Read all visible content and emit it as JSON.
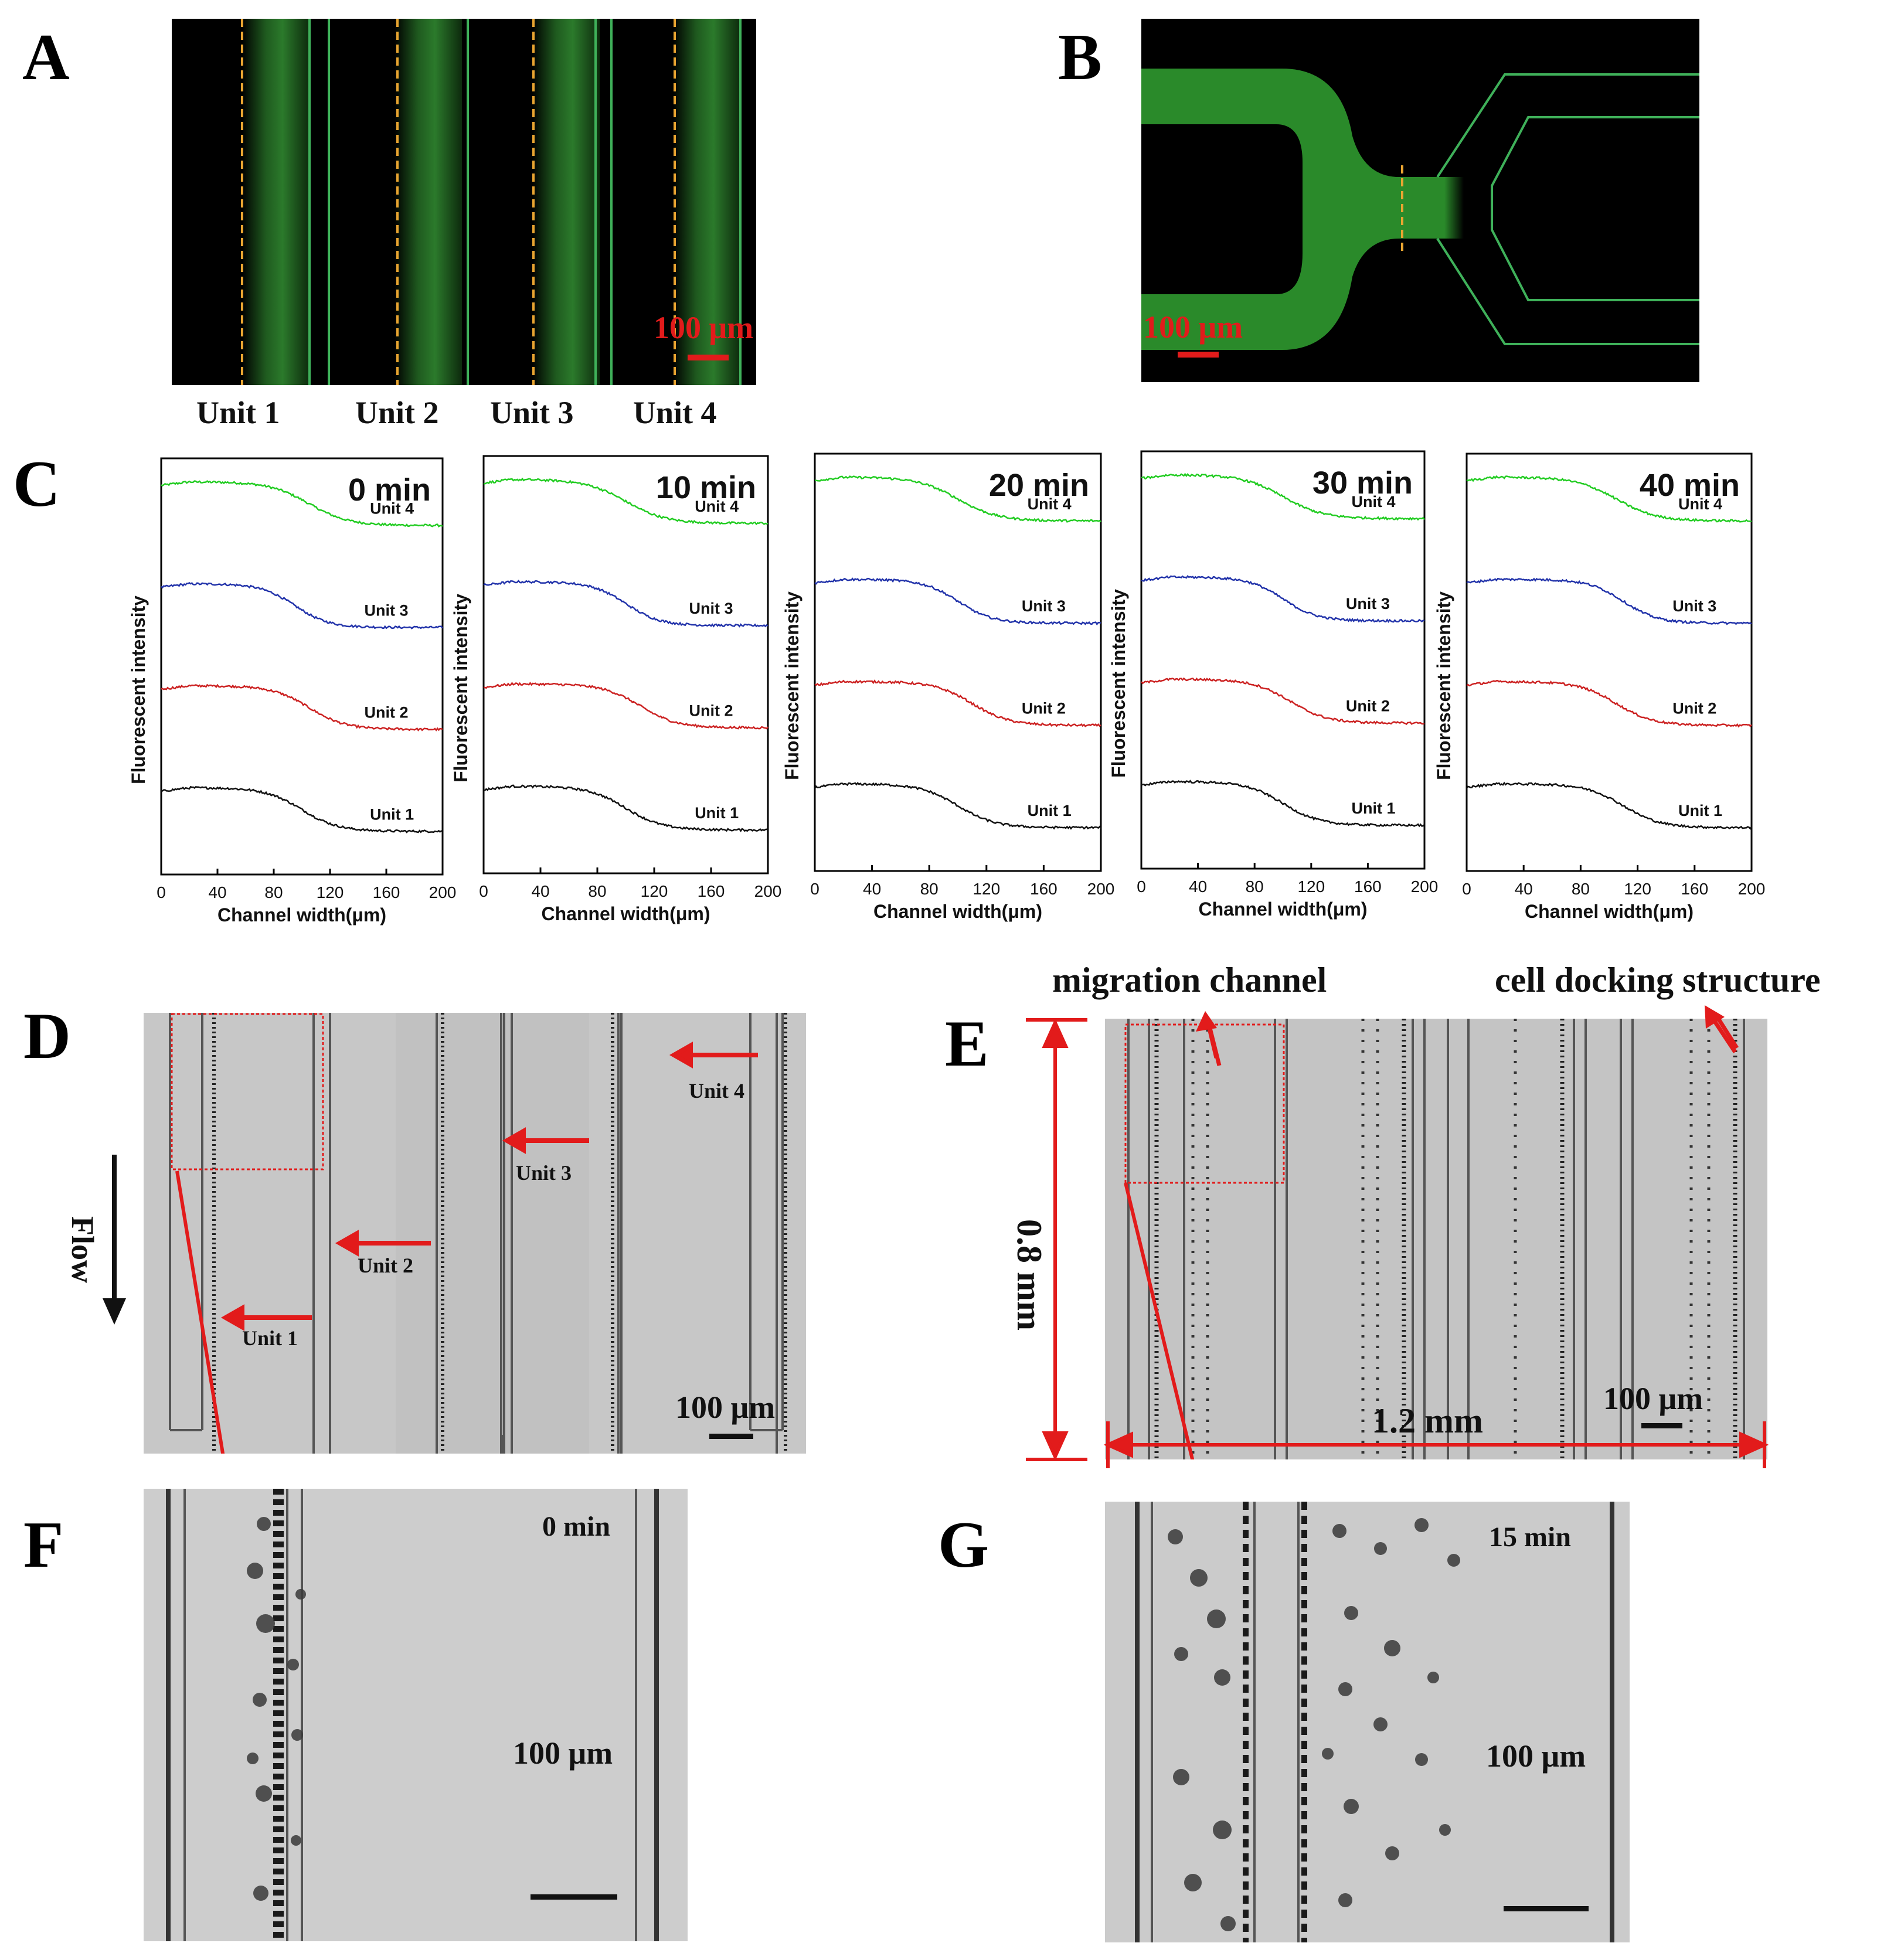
{
  "panels": {
    "A": {
      "label": "A",
      "scale_bar": "100 μm",
      "units": [
        "Unit 1",
        "Unit 2",
        "Unit 3",
        "Unit 4"
      ]
    },
    "B": {
      "label": "B",
      "scale_bar": "100 μm"
    },
    "C": {
      "label": "C"
    },
    "D": {
      "label": "D",
      "flow_label": "Flow",
      "scale_bar": "100 μm",
      "arrow_labels": [
        "Unit 1",
        "Unit 2",
        "Unit 3",
        "Unit 4"
      ]
    },
    "E": {
      "label": "E",
      "migration_channel": "migration channel",
      "cell_docking": "cell docking structure",
      "height_label": "0.8 mm",
      "width_label": "1.2 mm",
      "scale_bar": "100 μm"
    },
    "F": {
      "label": "F",
      "time": "0 min",
      "scale_bar": "100 μm"
    },
    "G": {
      "label": "G",
      "time": "15 min",
      "scale_bar": "100 μm"
    }
  },
  "chart_data": [
    {
      "type": "line",
      "title": "0 min",
      "xlabel": "Channel width(μm)",
      "ylabel": "Fluorescent intensity",
      "xticks": [
        0,
        40,
        80,
        120,
        160,
        200
      ],
      "xlim": [
        0,
        200
      ],
      "series": [
        {
          "name": "Unit 4",
          "color": "#22cc22",
          "plateau": 1.0,
          "low": 0.0,
          "mid": 105,
          "width": 14
        },
        {
          "name": "Unit 3",
          "color": "#2233aa",
          "plateau": 1.0,
          "low": 0.0,
          "mid": 95,
          "width": 12
        },
        {
          "name": "Unit 2",
          "color": "#cc2222",
          "plateau": 1.0,
          "low": 0.0,
          "mid": 105,
          "width": 13
        },
        {
          "name": "Unit 1",
          "color": "#111111",
          "plateau": 1.0,
          "low": 0.0,
          "mid": 100,
          "width": 13
        }
      ]
    },
    {
      "type": "line",
      "title": "10 min",
      "xlabel": "Channel width(μm)",
      "ylabel": "Fluorescent intensity",
      "xticks": [
        0,
        40,
        80,
        120,
        160,
        200
      ],
      "xlim": [
        0,
        200
      ],
      "series": [
        {
          "name": "Unit 4",
          "color": "#22cc22",
          "plateau": 1.0,
          "low": 0.0,
          "mid": 100,
          "width": 14
        },
        {
          "name": "Unit 3",
          "color": "#2233aa",
          "plateau": 1.0,
          "low": 0.0,
          "mid": 100,
          "width": 12
        },
        {
          "name": "Unit 2",
          "color": "#cc2222",
          "plateau": 1.0,
          "low": 0.0,
          "mid": 110,
          "width": 13
        },
        {
          "name": "Unit 1",
          "color": "#111111",
          "plateau": 1.0,
          "low": 0.0,
          "mid": 100,
          "width": 13
        }
      ]
    },
    {
      "type": "line",
      "title": "20 min",
      "xlabel": "Channel width(μm)",
      "ylabel": "Fluorescent intensity",
      "xticks": [
        0,
        40,
        80,
        120,
        160,
        200
      ],
      "xlim": [
        0,
        200
      ],
      "series": [
        {
          "name": "Unit 4",
          "color": "#22cc22",
          "plateau": 1.0,
          "low": 0.0,
          "mid": 100,
          "width": 14
        },
        {
          "name": "Unit 3",
          "color": "#2233aa",
          "plateau": 1.0,
          "low": 0.0,
          "mid": 100,
          "width": 12
        },
        {
          "name": "Unit 2",
          "color": "#cc2222",
          "plateau": 1.0,
          "low": 0.0,
          "mid": 110,
          "width": 13
        },
        {
          "name": "Unit 1",
          "color": "#111111",
          "plateau": 1.0,
          "low": 0.0,
          "mid": 100,
          "width": 13
        }
      ]
    },
    {
      "type": "line",
      "title": "30 min",
      "xlabel": "Channel width(μm)",
      "ylabel": "Fluorescent intensity",
      "xticks": [
        0,
        40,
        80,
        120,
        160,
        200
      ],
      "xlim": [
        0,
        200
      ],
      "series": [
        {
          "name": "Unit 4",
          "color": "#22cc22",
          "plateau": 1.0,
          "low": 0.0,
          "mid": 100,
          "width": 14
        },
        {
          "name": "Unit 3",
          "color": "#2233aa",
          "plateau": 1.0,
          "low": 0.0,
          "mid": 100,
          "width": 12
        },
        {
          "name": "Unit 2",
          "color": "#cc2222",
          "plateau": 1.0,
          "low": 0.0,
          "mid": 105,
          "width": 13
        },
        {
          "name": "Unit 1",
          "color": "#111111",
          "plateau": 1.0,
          "low": 0.0,
          "mid": 100,
          "width": 13
        }
      ]
    },
    {
      "type": "line",
      "title": "40 min",
      "xlabel": "Channel width(μm)",
      "ylabel": "Fluorescent intensity",
      "xticks": [
        0,
        40,
        80,
        120,
        160,
        200
      ],
      "xlim": [
        0,
        200
      ],
      "series": [
        {
          "name": "Unit 4",
          "color": "#22cc22",
          "plateau": 1.0,
          "low": 0.0,
          "mid": 105,
          "width": 14
        },
        {
          "name": "Unit 3",
          "color": "#2233aa",
          "plateau": 1.0,
          "low": 0.0,
          "mid": 110,
          "width": 12
        },
        {
          "name": "Unit 2",
          "color": "#cc2222",
          "plateau": 1.0,
          "low": 0.0,
          "mid": 105,
          "width": 13
        },
        {
          "name": "Unit 1",
          "color": "#111111",
          "plateau": 1.0,
          "low": 0.0,
          "mid": 110,
          "width": 13
        }
      ]
    }
  ]
}
